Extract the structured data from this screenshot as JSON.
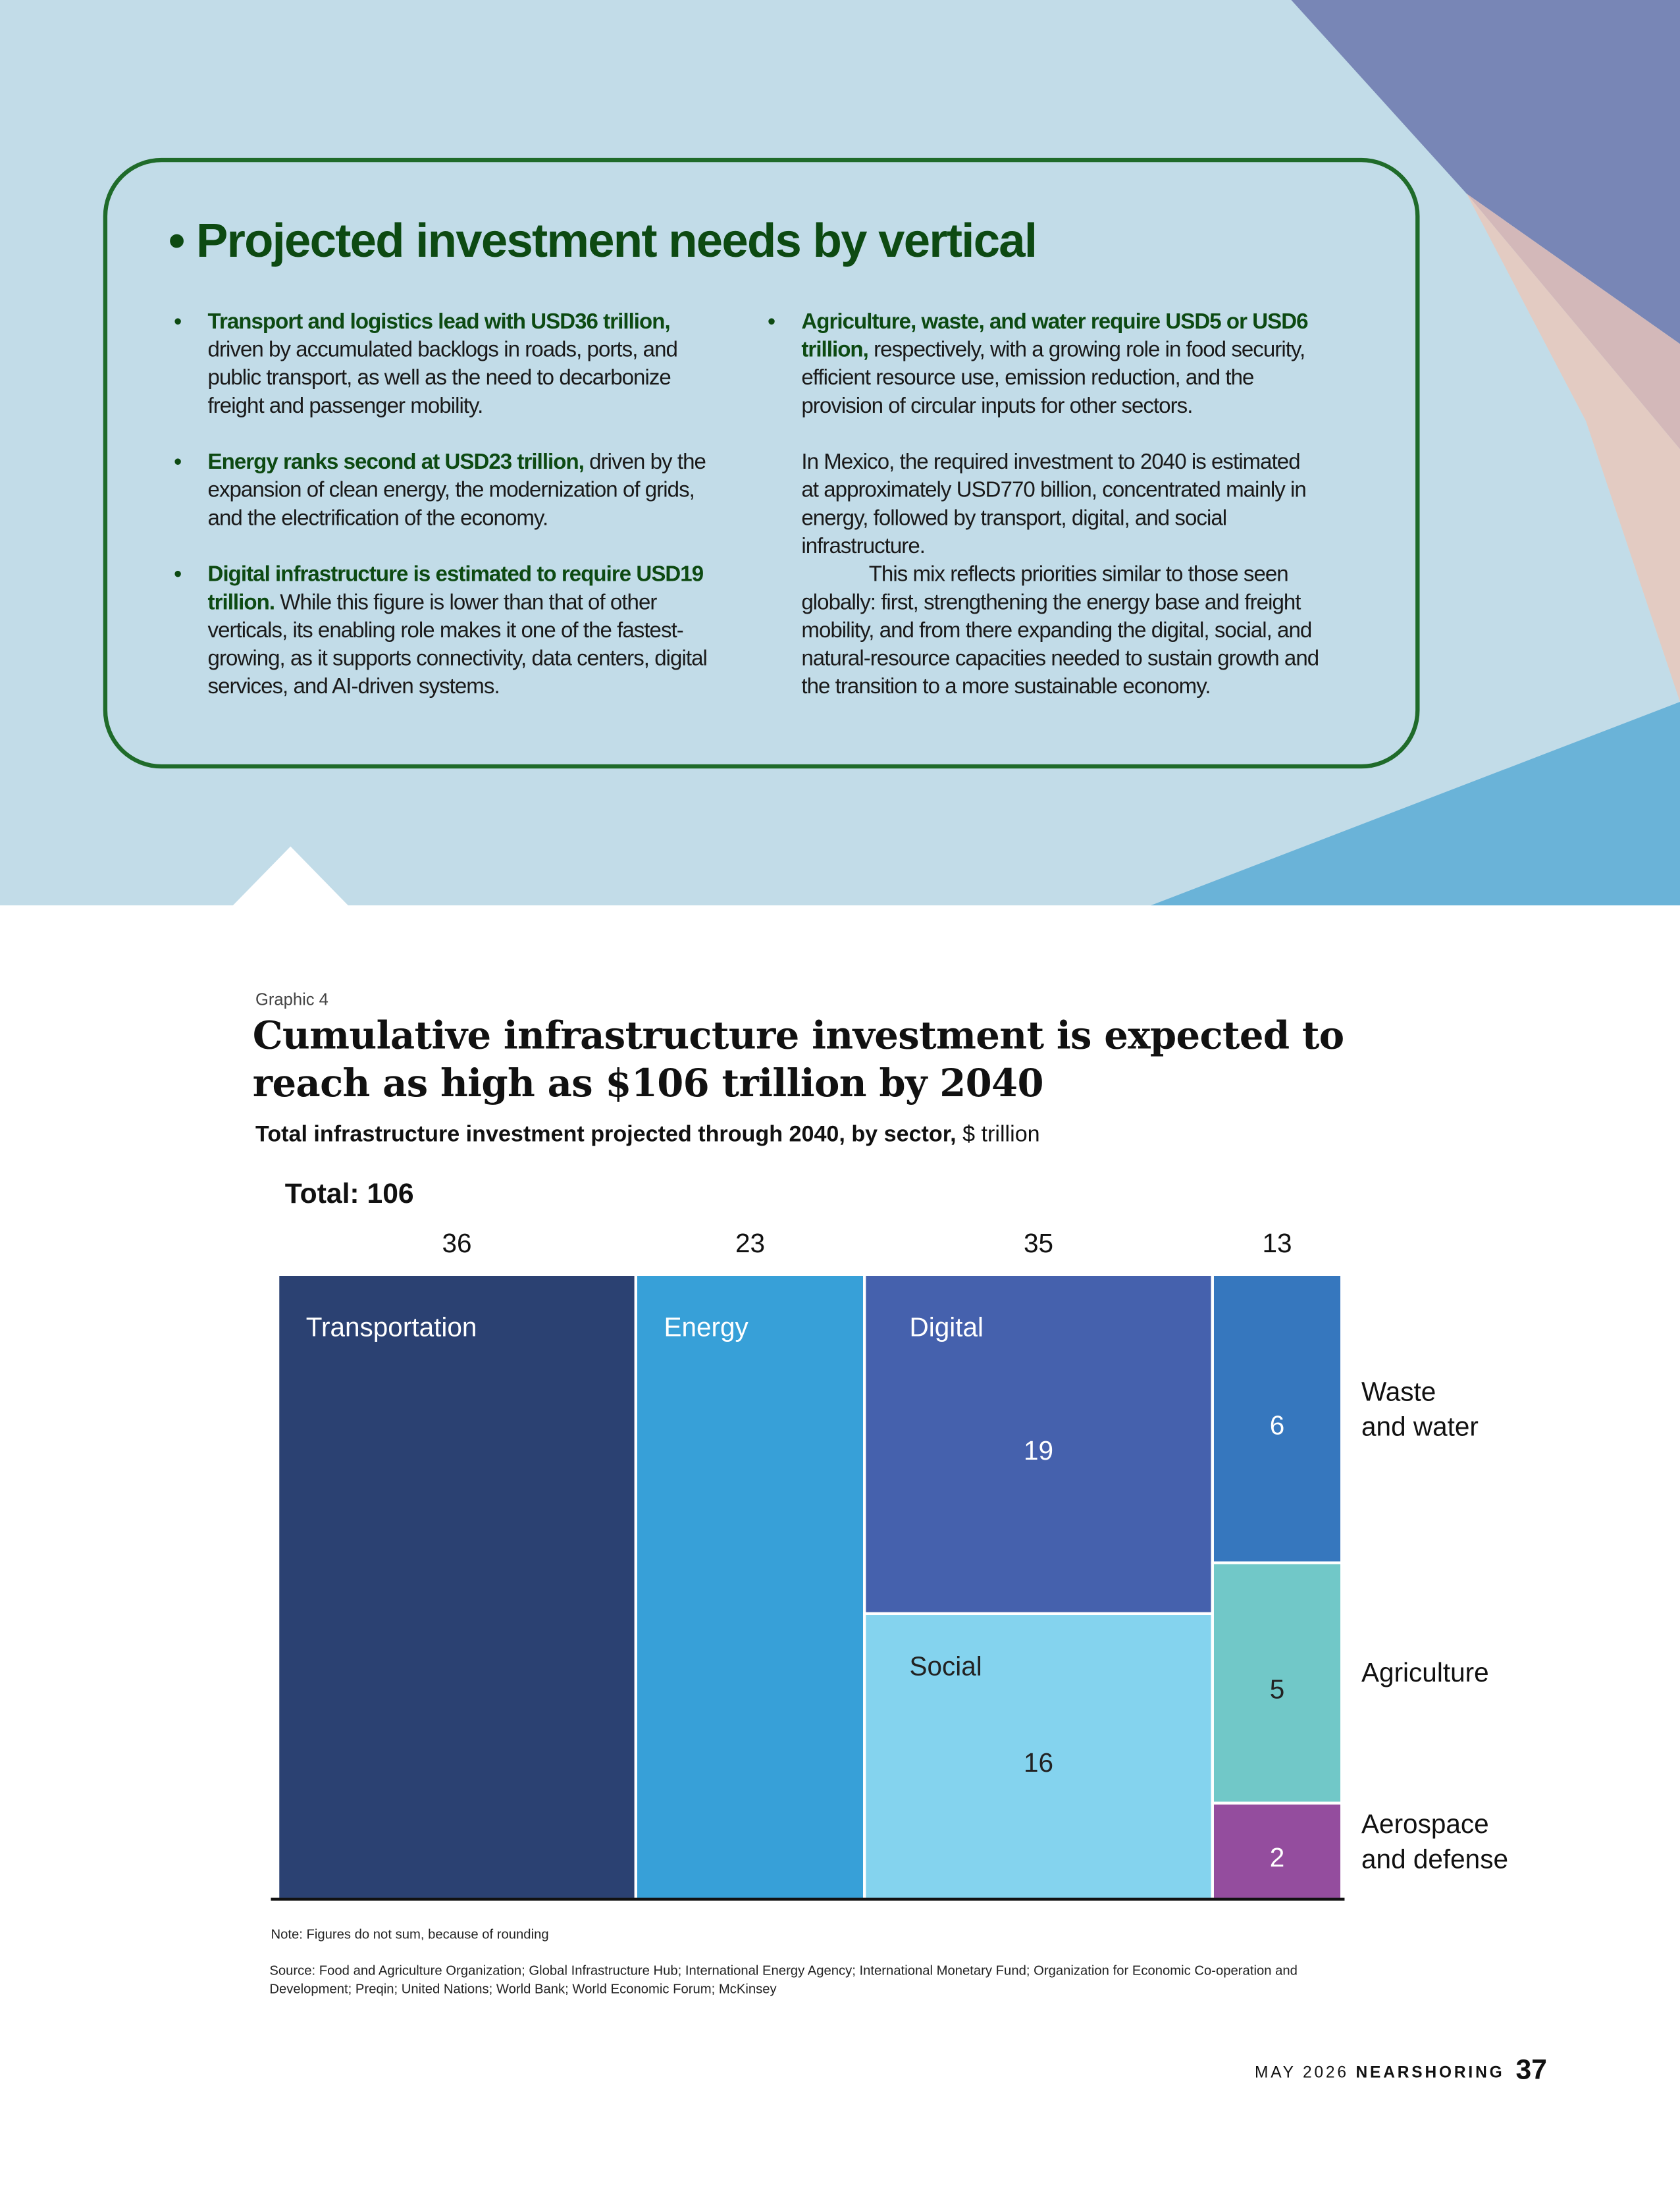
{
  "box": {
    "title": "Projected investment needs by vertical",
    "left": [
      {
        "bold": "Transport and logistics lead with USD36 trillion,",
        "text": " driven by accumulated backlogs in roads, ports, and public transport, as well as the need to decarbonize freight and passenger mobility."
      },
      {
        "bold": "Energy ranks second at USD23 trillion,",
        "text": " driven by the expansion of clean energy, the modernization of grids, and the electrification of the economy."
      },
      {
        "bold": "Digital infrastructure is estimated to require USD19 trillion.",
        "text": " While this figure is lower than that of other verticals, its enabling role makes it one of the fastest-growing, as it supports connectivity, data centers, digital services, and AI-driven systems."
      }
    ],
    "right_bullet": {
      "bold": "Agriculture, waste, and water require USD5 or USD6 trillion,",
      "text": " respectively, with a growing role in food security, efficient resource use, emission reduction, and the provision of circular inputs for other sectors."
    },
    "right_paragraphs": [
      "In Mexico, the required investment to 2040 is estimated at approximately USD770 billion, concentrated mainly in energy, followed by transport, digital, and social infrastructure.",
      "This mix reflects priorities similar to those seen globally: first, strengthening the energy base and freight mobility, and from there expanding the digital, social, and natural-resource capacities needed to sustain growth and the transition to a more sustainable economy."
    ]
  },
  "chart_data": {
    "type": "treemap",
    "label": "Graphic 4",
    "title": "Cumulative infrastructure investment is expected to reach as high as $106 trillion by 2040",
    "subtitle": "Total infrastructure investment projected through 2040, by sector,",
    "unit": "$ trillion",
    "total_label": "Total:",
    "total": 106,
    "columns": [
      {
        "total": 36,
        "items": [
          {
            "name": "Transportation",
            "value": 36,
            "color": "#2b4172"
          }
        ]
      },
      {
        "total": 23,
        "items": [
          {
            "name": "Energy",
            "value": 23,
            "color": "#37a0d8"
          }
        ]
      },
      {
        "total": 35,
        "items": [
          {
            "name": "Digital",
            "value": 19,
            "color": "#4561ad"
          },
          {
            "name": "Social",
            "value": 16,
            "color": "#84d3ee"
          }
        ]
      },
      {
        "total": 13,
        "items": [
          {
            "name": "Waste and water",
            "value": 6,
            "color": "#3677be"
          },
          {
            "name": "Agriculture",
            "value": 5,
            "color": "#71c8c8"
          },
          {
            "name": "Aerospace and defense",
            "value": 2,
            "color": "#944d9e"
          }
        ]
      }
    ],
    "note": "Note: Figures do not sum, because of rounding",
    "source": "Source: Food and Agriculture Organization; Global Infrastructure Hub; International Energy Agency; International Monetary Fund; Organization for Economic Co-operation and Development; Preqin; United Nations; World Bank; World Economic Forum; McKinsey"
  },
  "footer": {
    "issue": "MAY 2026",
    "magazine": "NEARSHORING",
    "page": "37"
  }
}
